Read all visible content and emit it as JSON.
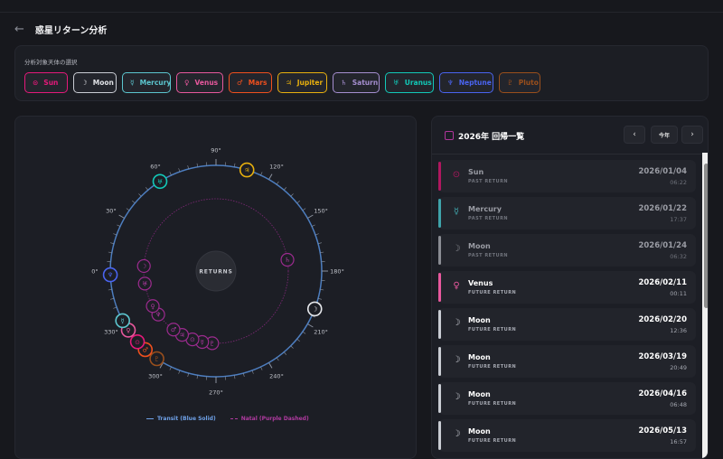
{
  "header": {
    "back_icon": "arrow-left-icon",
    "title": "惑星リターン分析"
  },
  "selection": {
    "label": "分析対象天体の選択",
    "planets": [
      {
        "name": "Sun",
        "symbol": "⊙",
        "color": "#e5197a"
      },
      {
        "name": "Moon",
        "symbol": "☽",
        "color": "#c9ccd3"
      },
      {
        "name": "Mercury",
        "symbol": "☿",
        "color": "#5cc6cf"
      },
      {
        "name": "Venus",
        "symbol": "♀",
        "color": "#e8589d"
      },
      {
        "name": "Mars",
        "symbol": "♂",
        "color": "#f0501e"
      },
      {
        "name": "Jupiter",
        "symbol": "♃",
        "color": "#e8b00e"
      },
      {
        "name": "Saturn",
        "symbol": "♄",
        "color": "#a58fd0"
      },
      {
        "name": "Uranus",
        "symbol": "♅",
        "color": "#12c9b8"
      },
      {
        "name": "Neptune",
        "symbol": "♆",
        "color": "#4a64f0"
      },
      {
        "name": "Pluto",
        "symbol": "♇",
        "color": "#9a4f1c"
      }
    ]
  },
  "chart": {
    "center_label": "RETURNS",
    "legend": {
      "transit": "Transit (Blue Solid)",
      "natal": "Natal (Purple Dashed)"
    },
    "ring_color": "#4d7ec0",
    "natal_color": "#9b2b8e",
    "tick_labels": [
      "0°",
      "30°",
      "60°",
      "90°",
      "120°",
      "150°",
      "180°",
      "210°",
      "240°",
      "270°",
      "300°",
      "330°"
    ]
  },
  "chart_data": {
    "type": "scatter",
    "angular_axis": "ecliptic longitude (degrees)",
    "transit": [
      {
        "planet": "Uranus",
        "lon": 58
      },
      {
        "planet": "Jupiter",
        "lon": 107
      },
      {
        "planet": "Neptune",
        "lon": 358
      },
      {
        "planet": "Moon",
        "lon": 201
      },
      {
        "planet": "Mercury",
        "lon": 330
      },
      {
        "planet": "Venus",
        "lon": 326
      },
      {
        "planet": "Sun",
        "lon": 318
      },
      {
        "planet": "Mars",
        "lon": 312
      },
      {
        "planet": "Pluto",
        "lon": 304
      }
    ],
    "natal": [
      {
        "planet": "Moon",
        "lon": 4
      },
      {
        "planet": "Uranus",
        "lon": 350
      },
      {
        "planet": "Venus",
        "lon": 331
      },
      {
        "planet": "Neptune",
        "lon": 323
      },
      {
        "planet": "Mars",
        "lon": 301
      },
      {
        "planet": "Jupiter",
        "lon": 298
      },
      {
        "planet": "Sun",
        "lon": 283
      },
      {
        "planet": "Mercury",
        "lon": 277
      },
      {
        "planet": "Pluto",
        "lon": 273
      },
      {
        "planet": "Saturn",
        "lon": 171
      }
    ]
  },
  "list": {
    "title": "2026年 回帰一覧",
    "prev": "‹",
    "today": "今年",
    "next": "›",
    "rows": [
      {
        "planet": "Sun",
        "symbol": "⊙",
        "color": "#b0175f",
        "status": "PAST RETURN",
        "date": "2026/01/04",
        "time": "06:22",
        "past": true
      },
      {
        "planet": "Mercury",
        "symbol": "☿",
        "color": "#3fa3aa",
        "status": "PAST RETURN",
        "date": "2026/01/22",
        "time": "17:37",
        "past": true
      },
      {
        "planet": "Moon",
        "symbol": "☽",
        "color": "#8a8c93",
        "status": "PAST RETURN",
        "date": "2026/01/24",
        "time": "06:32",
        "past": true
      },
      {
        "planet": "Venus",
        "symbol": "♀",
        "color": "#e8589d",
        "status": "FUTURE RETURN",
        "date": "2026/02/11",
        "time": "00:11",
        "past": false
      },
      {
        "planet": "Moon",
        "symbol": "☽",
        "color": "#c9ccd3",
        "status": "FUTURE RETURN",
        "date": "2026/02/20",
        "time": "12:36",
        "past": false
      },
      {
        "planet": "Moon",
        "symbol": "☽",
        "color": "#c9ccd3",
        "status": "FUTURE RETURN",
        "date": "2026/03/19",
        "time": "20:49",
        "past": false
      },
      {
        "planet": "Moon",
        "symbol": "☽",
        "color": "#c9ccd3",
        "status": "FUTURE RETURN",
        "date": "2026/04/16",
        "time": "06:48",
        "past": false
      },
      {
        "planet": "Moon",
        "symbol": "☽",
        "color": "#c9ccd3",
        "status": "FUTURE RETURN",
        "date": "2026/05/13",
        "time": "16:57",
        "past": false
      }
    ]
  }
}
